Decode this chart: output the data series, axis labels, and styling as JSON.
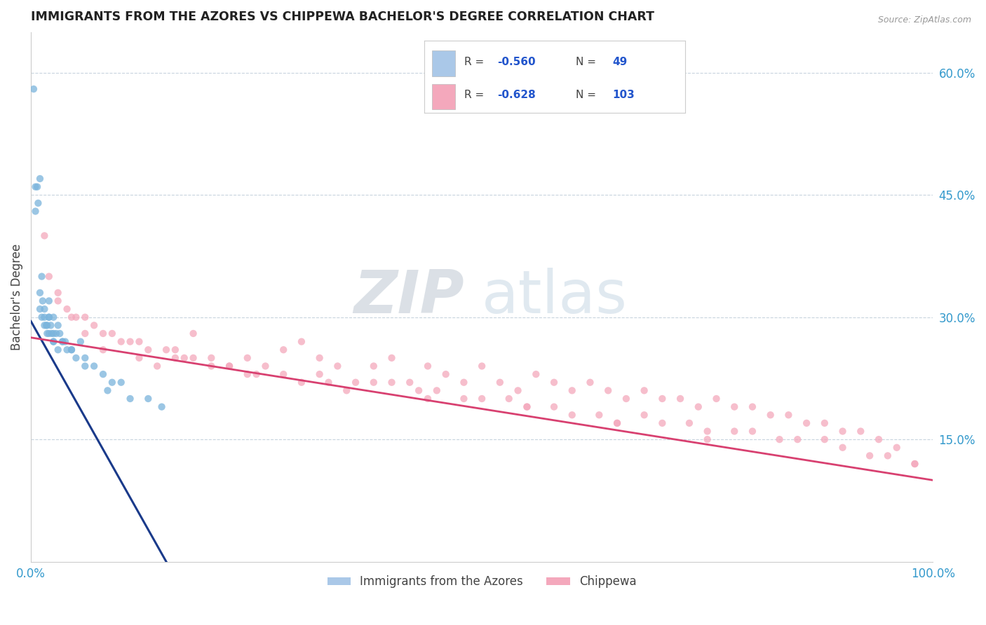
{
  "title": "IMMIGRANTS FROM THE AZORES VS CHIPPEWA BACHELOR'S DEGREE CORRELATION CHART",
  "source": "Source: ZipAtlas.com",
  "ylabel": "Bachelor's Degree",
  "xlim": [
    0,
    100
  ],
  "ylim": [
    0,
    65
  ],
  "y_tick_values": [
    15,
    30,
    45,
    60
  ],
  "y_tick_labels": [
    "15.0%",
    "30.0%",
    "45.0%",
    "60.0%"
  ],
  "watermark_zip": "ZIP",
  "watermark_atlas": "atlas",
  "legend_entries": [
    {
      "label": "Immigrants from the Azores",
      "color": "#aac8e8",
      "R": "-0.560",
      "N": "49"
    },
    {
      "label": "Chippewa",
      "color": "#f4a8bc",
      "R": "-0.628",
      "N": "103"
    }
  ],
  "blue_scatter_x": [
    0.3,
    0.5,
    0.5,
    0.7,
    0.8,
    1.0,
    1.0,
    1.2,
    1.3,
    1.5,
    1.5,
    1.7,
    1.8,
    2.0,
    2.0,
    2.0,
    2.2,
    2.3,
    2.5,
    2.5,
    2.8,
    3.0,
    3.0,
    3.2,
    3.5,
    3.8,
    4.0,
    4.5,
    5.0,
    5.5,
    6.0,
    7.0,
    8.0,
    9.0,
    10.0,
    11.0,
    13.0,
    14.5,
    1.0,
    1.5,
    2.0,
    2.5,
    1.2,
    1.8,
    2.5,
    3.5,
    4.5,
    6.0,
    8.5
  ],
  "blue_scatter_y": [
    58,
    46,
    43,
    46,
    44,
    47,
    33,
    30,
    32,
    31,
    30,
    29,
    28,
    32,
    30,
    28,
    29,
    28,
    30,
    27,
    28,
    29,
    26,
    28,
    27,
    27,
    26,
    26,
    25,
    27,
    25,
    24,
    23,
    22,
    22,
    20,
    20,
    19,
    31,
    29,
    30,
    28,
    35,
    29,
    27,
    27,
    26,
    24,
    21
  ],
  "pink_scatter_x": [
    1.5,
    3.0,
    4.5,
    6.0,
    8.0,
    10.0,
    12.0,
    14.0,
    16.0,
    18.0,
    20.0,
    22.0,
    24.0,
    26.0,
    28.0,
    30.0,
    32.0,
    34.0,
    36.0,
    38.0,
    40.0,
    42.0,
    44.0,
    46.0,
    48.0,
    50.0,
    52.0,
    54.0,
    56.0,
    58.0,
    60.0,
    62.0,
    64.0,
    66.0,
    68.0,
    70.0,
    72.0,
    74.0,
    76.0,
    78.0,
    80.0,
    82.0,
    84.0,
    86.0,
    88.0,
    90.0,
    92.0,
    94.0,
    96.0,
    98.0,
    5.0,
    8.0,
    12.0,
    16.0,
    20.0,
    25.0,
    30.0,
    35.0,
    40.0,
    45.0,
    50.0,
    55.0,
    60.0,
    65.0,
    70.0,
    75.0,
    80.0,
    85.0,
    90.0,
    95.0,
    3.0,
    7.0,
    13.0,
    18.0,
    28.0,
    38.0,
    48.0,
    58.0,
    68.0,
    78.0,
    88.0,
    98.0,
    4.0,
    9.0,
    15.0,
    22.0,
    32.0,
    43.0,
    53.0,
    63.0,
    73.0,
    83.0,
    93.0,
    2.0,
    6.0,
    11.0,
    17.0,
    24.0,
    33.0,
    44.0,
    55.0,
    65.0,
    75.0
  ],
  "pink_scatter_y": [
    40,
    33,
    30,
    28,
    26,
    27,
    25,
    24,
    26,
    28,
    25,
    24,
    25,
    24,
    26,
    27,
    25,
    24,
    22,
    24,
    25,
    22,
    24,
    23,
    22,
    24,
    22,
    21,
    23,
    22,
    21,
    22,
    21,
    20,
    21,
    20,
    20,
    19,
    20,
    19,
    19,
    18,
    18,
    17,
    17,
    16,
    16,
    15,
    14,
    12,
    30,
    28,
    27,
    25,
    24,
    23,
    22,
    21,
    22,
    21,
    20,
    19,
    18,
    17,
    17,
    16,
    16,
    15,
    14,
    13,
    32,
    29,
    26,
    25,
    23,
    22,
    20,
    19,
    18,
    16,
    15,
    12,
    31,
    28,
    26,
    24,
    23,
    21,
    20,
    18,
    17,
    15,
    13,
    35,
    30,
    27,
    25,
    23,
    22,
    20,
    19,
    17,
    15
  ],
  "blue_line_x": [
    0,
    15
  ],
  "blue_line_y": [
    29.5,
    0
  ],
  "pink_line_x": [
    0,
    100
  ],
  "pink_line_y": [
    27.5,
    10.0
  ],
  "background_color": "#ffffff",
  "grid_color": "#c8d4de",
  "dot_size": 55,
  "blue_dot_color": "#7ab4dc",
  "pink_dot_color": "#f4a8bc",
  "blue_line_color": "#1a3a8a",
  "pink_line_color": "#d84070",
  "title_color": "#222222",
  "axis_label_color": "#444444",
  "tick_color": "#3399cc",
  "source_color": "#999999",
  "legend_text_color": "#444444",
  "legend_value_color": "#2255cc"
}
